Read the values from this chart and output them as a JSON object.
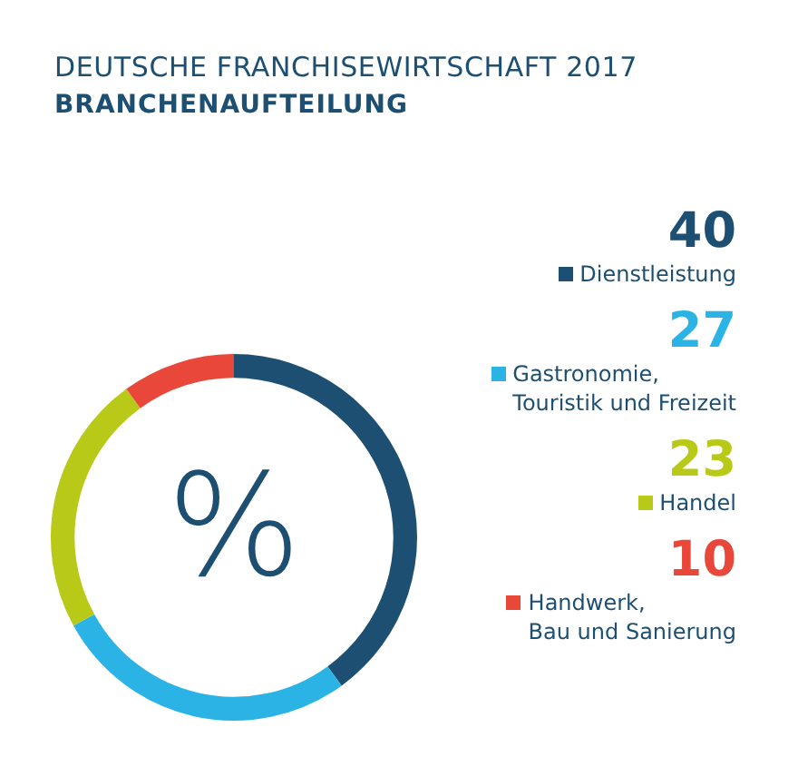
{
  "chart_data": {
    "type": "donut",
    "title": "DEUTSCHE FRANCHISEWIRTSCHAFT 2017",
    "subtitle": "BRANCHENAUFTEILUNG",
    "categories": [
      "Dienstleistung",
      "Gastronomie, Touristik und Freizeit",
      "Handel",
      "Handwerk, Bau und Sanierung"
    ],
    "values": [
      40,
      27,
      23,
      10
    ],
    "colors": [
      "#1d4f72",
      "#2bb3e6",
      "#b8c917",
      "#e8473a"
    ],
    "annotations": [
      "%"
    ],
    "data_labels": true,
    "legend": "right"
  }
}
